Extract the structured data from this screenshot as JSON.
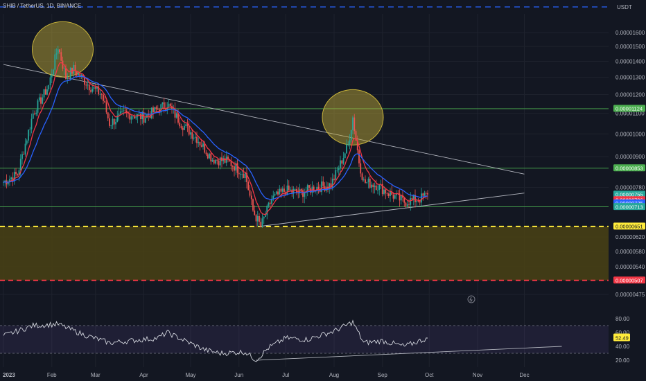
{
  "header": {
    "symbol_line": "SHIB / TetherUS, 1D, BINANCE",
    "currency": "USDT"
  },
  "colors": {
    "background": "#131722",
    "grid": "#1e222d",
    "axis_text": "#b2b5be",
    "bull": "#26a69a",
    "bear": "#ef5350",
    "ema_fast": "#f23645",
    "ema_slow": "#2962ff",
    "support_zone": "#4a4214",
    "highlight_circle": "#c9b43a",
    "resistance_green": "#4caf50",
    "support_yellow": "#ffeb3b",
    "stop_red": "#f23645",
    "top_blue": "#2962ff",
    "rsi_line": "#d1d4dc"
  },
  "chart_data": [
    {
      "type": "candlestick",
      "title": "SHIB / TetherUS, 1D, BINANCE",
      "x_ticks": [
        "2023",
        "Feb",
        "Mar",
        "Apr",
        "May",
        "Jun",
        "Jul",
        "Aug",
        "Sep",
        "Oct",
        "Nov",
        "Dec"
      ],
      "y_ticks": [
        "0.00001600",
        "0.00001500",
        "0.00001400",
        "0.00001300",
        "0.00001200",
        "0.00001100",
        "0.00001000",
        "0.00000900",
        "0.00000780",
        "0.00000620",
        "0.00000580",
        "0.00000540",
        "0.00000475"
      ],
      "y_tick_values": [
        1.6e-05,
        1.5e-05,
        1.4e-05,
        1.3e-05,
        1.2e-05,
        1.1e-05,
        1e-05,
        9e-06,
        7.8e-06,
        6.2e-06,
        5.8e-06,
        5.4e-06,
        4.75e-06
      ],
      "scale": "log",
      "close_path": [
        {
          "date": "2023-01-01",
          "close": 8e-06
        },
        {
          "date": "2023-01-10",
          "close": 8.3e-06
        },
        {
          "date": "2023-01-20",
          "close": 1.1e-05
        },
        {
          "date": "2023-01-30",
          "close": 1.25e-05
        },
        {
          "date": "2023-02-05",
          "close": 1.5e-05
        },
        {
          "date": "2023-02-10",
          "close": 1.3e-05
        },
        {
          "date": "2023-02-15",
          "close": 1.35e-05
        },
        {
          "date": "2023-02-25",
          "close": 1.25e-05
        },
        {
          "date": "2023-03-05",
          "close": 1.2e-05
        },
        {
          "date": "2023-03-10",
          "close": 1.05e-05
        },
        {
          "date": "2023-03-20",
          "close": 1.1e-05
        },
        {
          "date": "2023-04-01",
          "close": 1.08e-05
        },
        {
          "date": "2023-04-16",
          "close": 1.15e-05
        },
        {
          "date": "2023-04-25",
          "close": 1.05e-05
        },
        {
          "date": "2023-05-05",
          "close": 9.8e-06
        },
        {
          "date": "2023-05-15",
          "close": 8.9e-06
        },
        {
          "date": "2023-05-25",
          "close": 8.8e-06
        },
        {
          "date": "2023-06-05",
          "close": 8.3e-06
        },
        {
          "date": "2023-06-10",
          "close": 7e-06
        },
        {
          "date": "2023-06-15",
          "close": 6.5e-06
        },
        {
          "date": "2023-06-22",
          "close": 7.4e-06
        },
        {
          "date": "2023-07-01",
          "close": 7.7e-06
        },
        {
          "date": "2023-07-10",
          "close": 7.6e-06
        },
        {
          "date": "2023-07-20",
          "close": 7.8e-06
        },
        {
          "date": "2023-07-30",
          "close": 7.9e-06
        },
        {
          "date": "2023-08-05",
          "close": 8.7e-06
        },
        {
          "date": "2023-08-10",
          "close": 9.5e-06
        },
        {
          "date": "2023-08-13",
          "close": 1.08e-05
        },
        {
          "date": "2023-08-17",
          "close": 8.8e-06
        },
        {
          "date": "2023-08-20",
          "close": 8e-06
        },
        {
          "date": "2023-08-28",
          "close": 7.9e-06
        },
        {
          "date": "2023-09-05",
          "close": 7.6e-06
        },
        {
          "date": "2023-09-15",
          "close": 7.3e-06
        },
        {
          "date": "2023-09-25",
          "close": 7.4e-06
        },
        {
          "date": "2023-09-30",
          "close": 7.55e-06
        }
      ],
      "price_pills": [
        {
          "label": "0.00001124",
          "role": "resistance_green"
        },
        {
          "label": "0.00000853",
          "role": "resistance_green"
        },
        {
          "label": "0.00000755",
          "role": "bull"
        },
        {
          "label": "16:48:05",
          "role": "bull"
        },
        {
          "label": "0.00000736",
          "role": "ema_fast"
        },
        {
          "label": "0.00000725",
          "role": "ema_slow"
        },
        {
          "label": "0.00000713",
          "role": "bull"
        },
        {
          "label": "0.00000651",
          "role": "support_yellow"
        },
        {
          "label": "0.00000507",
          "role": "stop_red"
        }
      ],
      "horizontal_levels": [
        {
          "value": 1.124e-05,
          "style": "solid",
          "color_role": "resistance_green"
        },
        {
          "value": 8.53e-06,
          "style": "solid",
          "color_role": "resistance_green"
        },
        {
          "value": 7.13e-06,
          "style": "solid",
          "color_role": "resistance_green"
        },
        {
          "value": 6.51e-06,
          "style": "dashed",
          "color_role": "support_yellow"
        },
        {
          "value": 5.07e-06,
          "style": "dashed",
          "color_role": "stop_red"
        }
      ],
      "support_zone": [
        5.07e-06,
        6.51e-06
      ],
      "trendlines": [
        {
          "from": {
            "date": "2023-01-01",
            "price": 1.38e-05
          },
          "to": {
            "date": "2023-12-01",
            "price": 8.3e-06
          }
        },
        {
          "from": {
            "date": "2023-06-14",
            "price": 6.51e-06
          },
          "to": {
            "date": "2023-12-01",
            "price": 7.6e-06
          }
        }
      ],
      "highlight_circles": [
        {
          "date": "2023-02-08",
          "price": 1.48e-05
        },
        {
          "date": "2023-08-13",
          "price": 1.08e-05
        }
      ]
    },
    {
      "type": "line",
      "title": "",
      "y_ticks": [
        "80.00",
        "60.00",
        "40.00",
        "20.00"
      ],
      "ylim": [
        20,
        80
      ],
      "bands": [
        30,
        70
      ],
      "current_label": "52.49",
      "rsi_path": [
        {
          "date": "2023-01-01",
          "rsi": 55
        },
        {
          "date": "2023-01-20",
          "rsi": 70
        },
        {
          "date": "2023-02-05",
          "rsi": 72
        },
        {
          "date": "2023-02-20",
          "rsi": 58
        },
        {
          "date": "2023-03-10",
          "rsi": 45
        },
        {
          "date": "2023-04-10",
          "rsi": 52
        },
        {
          "date": "2023-04-16",
          "rsi": 60
        },
        {
          "date": "2023-05-10",
          "rsi": 35
        },
        {
          "date": "2023-05-20",
          "rsi": 30
        },
        {
          "date": "2023-06-05",
          "rsi": 32
        },
        {
          "date": "2023-06-12",
          "rsi": 20
        },
        {
          "date": "2023-06-20",
          "rsi": 38
        },
        {
          "date": "2023-07-01",
          "rsi": 52
        },
        {
          "date": "2023-07-15",
          "rsi": 50
        },
        {
          "date": "2023-08-01",
          "rsi": 62
        },
        {
          "date": "2023-08-13",
          "rsi": 75
        },
        {
          "date": "2023-08-20",
          "rsi": 45
        },
        {
          "date": "2023-09-01",
          "rsi": 48
        },
        {
          "date": "2023-09-15",
          "rsi": 40
        },
        {
          "date": "2023-09-30",
          "rsi": 52
        }
      ],
      "trendline": {
        "from": {
          "date": "2023-06-12",
          "rsi": 20
        },
        "to": {
          "date": "2023-12-25",
          "rsi": 40
        }
      }
    }
  ]
}
